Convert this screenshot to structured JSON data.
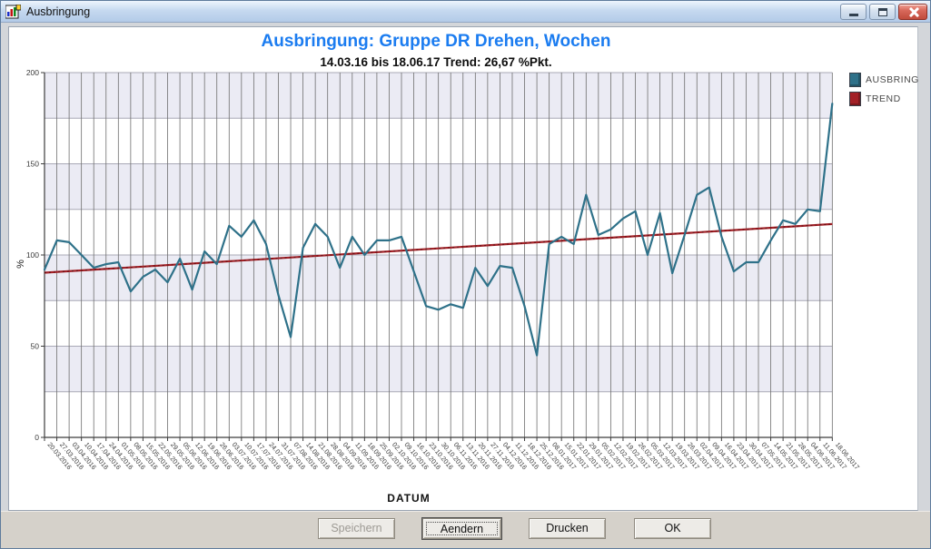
{
  "window": {
    "title": "Ausbringung",
    "controls": [
      {
        "name": "minimize"
      },
      {
        "name": "maximize"
      },
      {
        "name": "close"
      }
    ]
  },
  "chart": {
    "title": "Ausbringung: Gruppe DR Drehen, Wochen",
    "subtitle": "14.03.16 bis 18.06.17 Trend: 26,67 %Pkt.",
    "ylabel": "%",
    "xlabel": "DATUM",
    "legend": [
      {
        "label": "AUSBRING",
        "color": "#2E7189"
      },
      {
        "label": "TREND",
        "color": "#A32026"
      }
    ]
  },
  "chart_data": {
    "type": "line",
    "title": "Ausbringung: Gruppe DR Drehen, Wochen",
    "subtitle": "14.03.16 bis 18.06.17 Trend: 26,67 %Pkt.",
    "xlabel": "DATUM",
    "ylabel": "%",
    "ylim": [
      0,
      200
    ],
    "yticks": [
      0,
      50,
      100,
      150,
      200
    ],
    "grid": true,
    "legend_position": "top-right",
    "categories": [
      "20.03.2016",
      "27.03.2016",
      "03.04.2016",
      "10.04.2016",
      "17.04.2016",
      "24.04.2016",
      "01.05.2016",
      "08.05.2016",
      "15.05.2016",
      "22.05.2016",
      "29.05.2016",
      "05.06.2016",
      "12.06.2016",
      "19.06.2016",
      "26.06.2016",
      "03.07.2016",
      "10.07.2016",
      "17.07.2016",
      "24.07.2016",
      "31.07.2016",
      "07.08.2016",
      "14.08.2016",
      "21.08.2016",
      "28.08.2016",
      "04.09.2016",
      "11.09.2016",
      "18.09.2016",
      "25.09.2016",
      "02.10.2016",
      "09.10.2016",
      "16.10.2016",
      "23.10.2016",
      "30.10.2016",
      "06.11.2016",
      "13.11.2016",
      "20.11.2016",
      "27.11.2016",
      "04.12.2016",
      "11.12.2016",
      "18.12.2016",
      "25.12.2016",
      "08.01.2017",
      "15.01.2017",
      "22.01.2017",
      "29.01.2017",
      "05.02.2017",
      "12.02.2017",
      "19.02.2017",
      "26.02.2017",
      "05.03.2017",
      "12.03.2017",
      "19.03.2017",
      "26.03.2017",
      "02.04.2017",
      "09.04.2017",
      "16.04.2017",
      "23.04.2017",
      "30.04.2017",
      "07.05.2017",
      "14.05.2017",
      "21.05.2017",
      "28.05.2017",
      "04.06.2017",
      "11.06.2017",
      "18.06.2017"
    ],
    "series": [
      {
        "name": "AUSBRING",
        "color": "#2E7189",
        "values": [
          92,
          108,
          107,
          100,
          93,
          95,
          96,
          80,
          88,
          92,
          85,
          98,
          81,
          102,
          95,
          116,
          110,
          119,
          106,
          78,
          55,
          104,
          117,
          110,
          93,
          110,
          100,
          108,
          108,
          110,
          91,
          72,
          70,
          73,
          71,
          93,
          83,
          94,
          93,
          72,
          45,
          106,
          110,
          106,
          133,
          111,
          114,
          120,
          124,
          100,
          123,
          90,
          111,
          133,
          137,
          110,
          91,
          96,
          96,
          108,
          119,
          117,
          125,
          124,
          183
        ]
      },
      {
        "name": "TREND",
        "color": "#A32026",
        "shape": "linear",
        "start": 90.3,
        "end": 116.97
      }
    ]
  },
  "colors": {
    "title_blue": "#1B7CF0",
    "stripe": "#EBEBF4",
    "grid_v": "#6F6F6F",
    "grid_h": "#A9A9B6",
    "axis": "#3C3C3C",
    "tick_text": "#3A3A3A"
  },
  "buttons": [
    {
      "label": "Speichern",
      "state": "disabled"
    },
    {
      "label": "Aendern",
      "state": "default-focused"
    },
    {
      "label": "Drucken",
      "state": "normal"
    },
    {
      "label": "OK",
      "state": "normal"
    }
  ]
}
